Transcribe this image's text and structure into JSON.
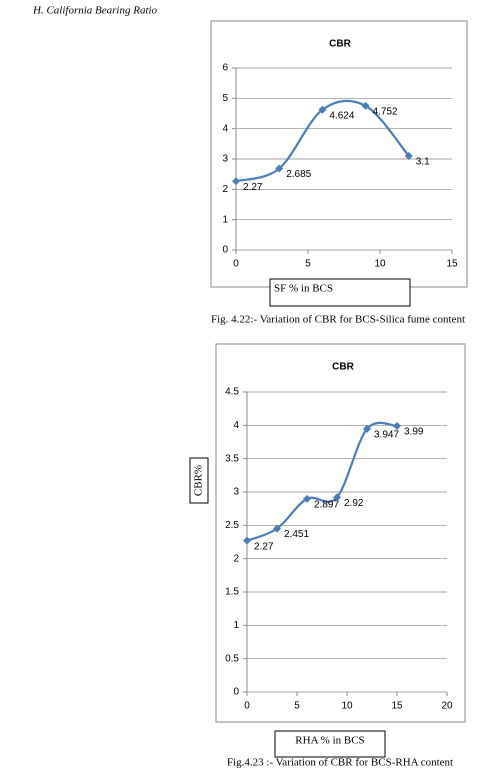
{
  "heading": "H.   California Bearing Ratio",
  "chart_data": [
    {
      "type": "line",
      "title": "CBR",
      "x": [
        0,
        3,
        6,
        9,
        12
      ],
      "values": [
        2.27,
        2.685,
        4.624,
        4.752,
        3.1
      ],
      "color": "#4a7ebb",
      "xlim": [
        0,
        15
      ],
      "xticks": [
        0,
        5,
        10,
        15
      ],
      "ylim": [
        0,
        6
      ],
      "yticks": [
        0,
        1,
        2,
        3,
        4,
        5,
        6
      ],
      "grid": true,
      "x_label": "SF % in BCS",
      "caption": "Fig. 4.22:- Variation of CBR for BCS-Silica fume content"
    },
    {
      "type": "line",
      "title": "CBR",
      "x": [
        0,
        3,
        6,
        9,
        12,
        15
      ],
      "values": [
        2.27,
        2.451,
        2.897,
        2.92,
        3.947,
        3.99
      ],
      "color": "#4a7ebb",
      "xlim": [
        0,
        20
      ],
      "xticks": [
        0,
        5,
        10,
        15,
        20
      ],
      "ylim": [
        0,
        4.5
      ],
      "yticks": [
        0,
        0.5,
        1,
        1.5,
        2,
        2.5,
        3,
        3.5,
        4,
        4.5
      ],
      "grid": true,
      "x_label": "RHA % in BCS",
      "y_label": "CBR%",
      "caption": "Fig.4.23 :- Variation of CBR for BCS-RHA content"
    }
  ]
}
